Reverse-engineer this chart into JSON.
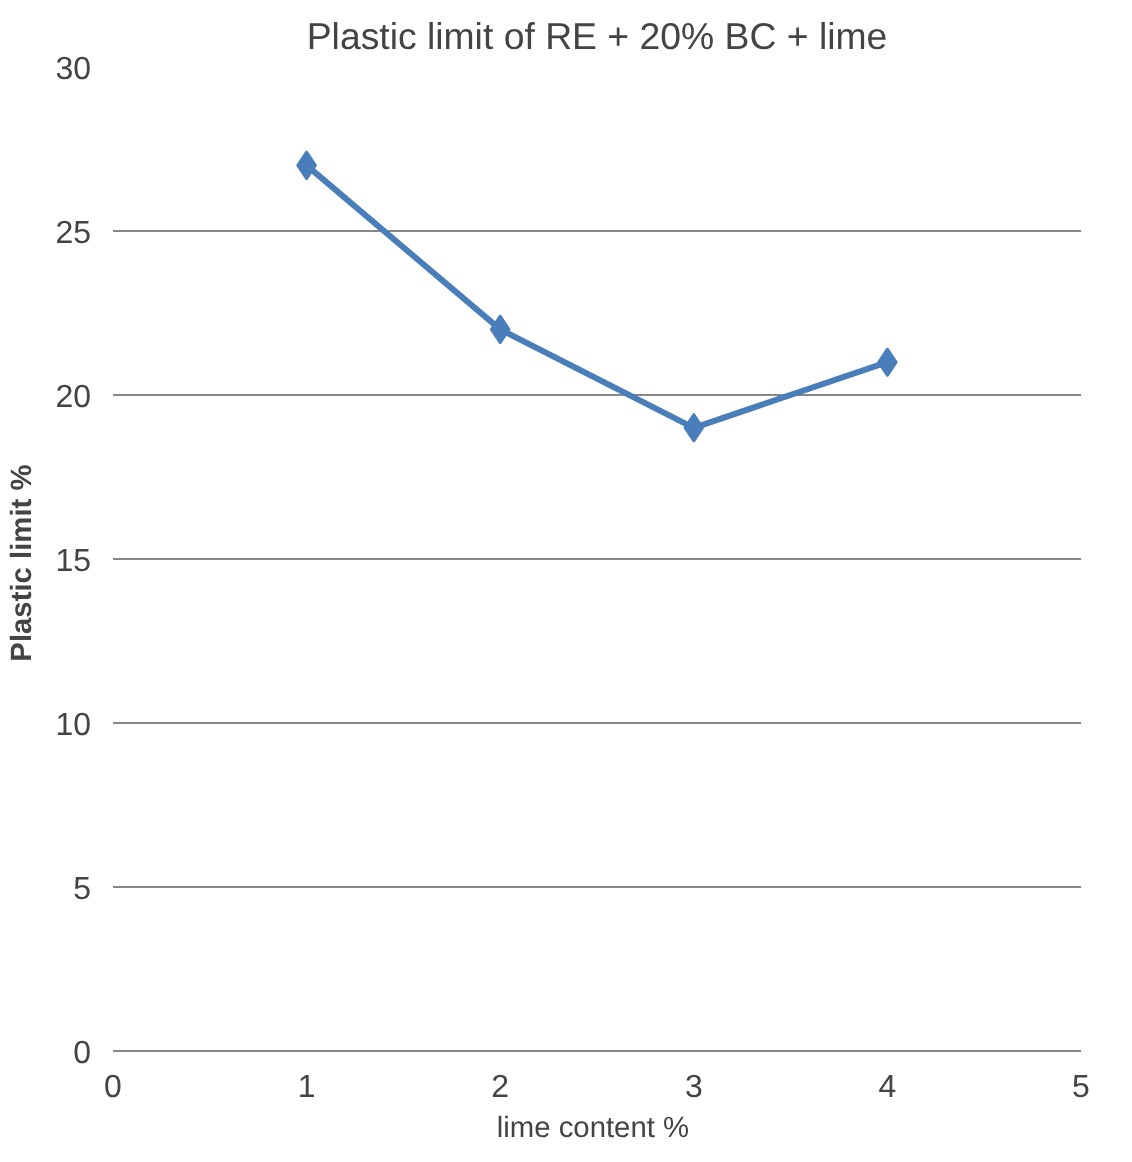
{
  "chart_data": {
    "type": "line",
    "title": "Plastic limit of RE + 20% BC + lime",
    "xlabel": "lime content  %",
    "ylabel": "Plastic  limit %",
    "x": [
      1,
      2,
      3,
      4
    ],
    "series": [
      {
        "color": "#4a7ebb",
        "values": [
          27,
          22,
          19,
          21
        ]
      }
    ],
    "xlim": [
      0,
      5
    ],
    "xticks": [
      0,
      1,
      2,
      3,
      4,
      5
    ],
    "ylim": [
      0,
      30
    ],
    "yticks": [
      0,
      5,
      10,
      15,
      20,
      25,
      30
    ],
    "grid": "y",
    "marker": "diamond",
    "line_style": "solid"
  }
}
